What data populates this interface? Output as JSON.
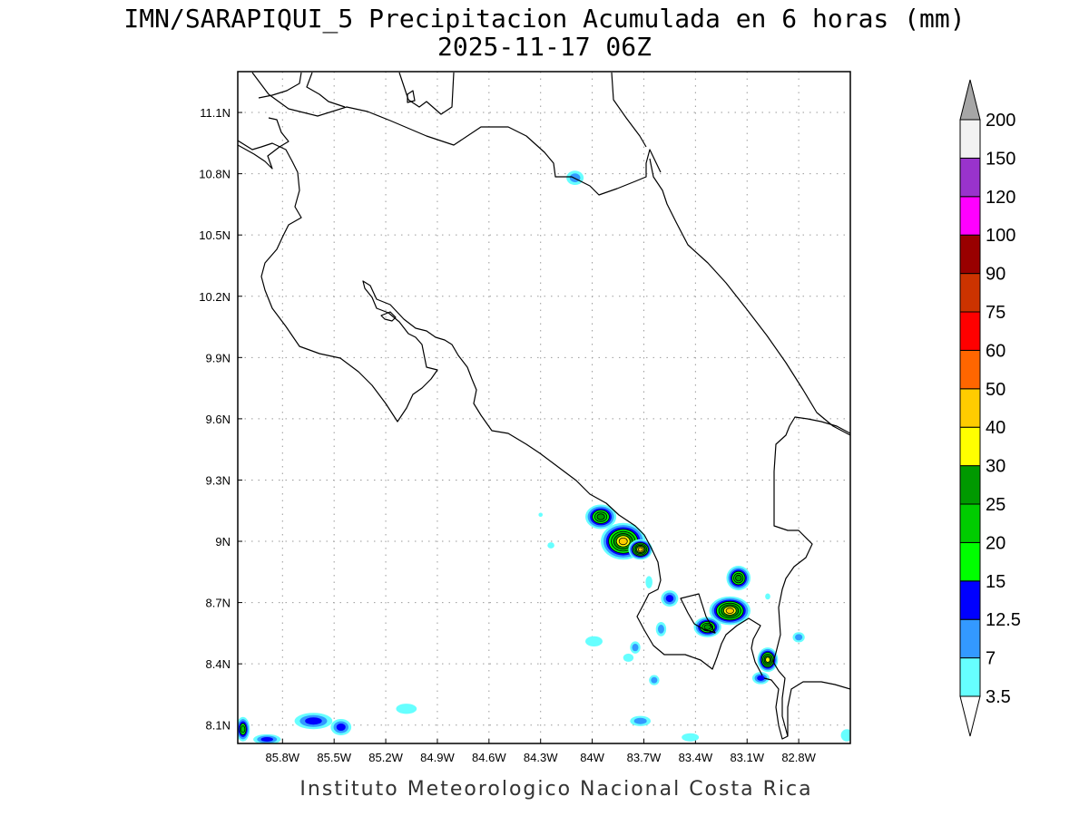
{
  "title": {
    "line1": "IMN/SARAPIQUI_5 Precipitacion Acumulada en 6 horas (mm)",
    "line2": "2025-11-17 06Z"
  },
  "credit": "Instituto Meteorologico Nacional Costa Rica",
  "map": {
    "lon_range": [
      -86.06,
      -82.5
    ],
    "lat_range": [
      8.01,
      11.3
    ],
    "lon_ticks": [
      {
        "value": -85.8,
        "label": "85.8W"
      },
      {
        "value": -85.5,
        "label": "85.5W"
      },
      {
        "value": -85.2,
        "label": "85.2W"
      },
      {
        "value": -84.9,
        "label": "84.9W"
      },
      {
        "value": -84.6,
        "label": "84.6W"
      },
      {
        "value": -84.3,
        "label": "84.3W"
      },
      {
        "value": -84.0,
        "label": "84W"
      },
      {
        "value": -83.7,
        "label": "83.7W"
      },
      {
        "value": -83.4,
        "label": "83.4W"
      },
      {
        "value": -83.1,
        "label": "83.1W"
      },
      {
        "value": -82.8,
        "label": "82.8W"
      }
    ],
    "lat_ticks": [
      {
        "value": 11.1,
        "label": "11.1N"
      },
      {
        "value": 10.8,
        "label": "10.8N"
      },
      {
        "value": 10.5,
        "label": "10.5N"
      },
      {
        "value": 10.2,
        "label": "10.2N"
      },
      {
        "value": 9.9,
        "label": "9.9N"
      },
      {
        "value": 9.6,
        "label": "9.6N"
      },
      {
        "value": 9.3,
        "label": "9.3N"
      },
      {
        "value": 9.0,
        "label": "9N"
      },
      {
        "value": 8.7,
        "label": "8.7N"
      },
      {
        "value": 8.4,
        "label": "8.4N"
      },
      {
        "value": 8.1,
        "label": "8.1N"
      }
    ],
    "grid": true
  },
  "colorbar": {
    "levels": [
      "3.5",
      "7",
      "12.5",
      "15",
      "20",
      "25",
      "30",
      "40",
      "50",
      "60",
      "75",
      "90",
      "100",
      "120",
      "150",
      "200"
    ],
    "colors": [
      "#ffffff",
      "#66ffff",
      "#3399ff",
      "#0000ff",
      "#00ff00",
      "#00cc00",
      "#009900",
      "#ffff00",
      "#ffcc00",
      "#ff6600",
      "#ff0000",
      "#cc3300",
      "#990000",
      "#ff00ff",
      "#9933cc",
      "#f2f2f2",
      "#a6a6a6"
    ]
  },
  "chart_data": {
    "type": "heatmap",
    "title": "IMN/SARAPIQUI_5 Precipitacion Acumulada en 6 horas (mm)",
    "xlabel": "",
    "ylabel": "",
    "xlim": [
      -86.06,
      -82.5
    ],
    "ylim": [
      8.01,
      11.3
    ],
    "units": "mm",
    "levels": [
      3.5,
      7,
      12.5,
      15,
      20,
      25,
      30,
      40,
      50,
      60,
      75,
      90,
      100,
      120,
      150,
      200
    ],
    "precip_cells": [
      {
        "lon": -83.95,
        "lat": 9.12,
        "rx": 0.09,
        "ry": 0.06,
        "peak": 25
      },
      {
        "lon": -83.82,
        "lat": 9.0,
        "rx": 0.13,
        "ry": 0.09,
        "peak": 40
      },
      {
        "lon": -83.72,
        "lat": 8.96,
        "rx": 0.07,
        "ry": 0.05,
        "peak": 40
      },
      {
        "lon": -83.55,
        "lat": 8.72,
        "rx": 0.05,
        "ry": 0.04,
        "peak": 12.5
      },
      {
        "lon": -83.15,
        "lat": 8.82,
        "rx": 0.07,
        "ry": 0.06,
        "peak": 25
      },
      {
        "lon": -83.2,
        "lat": 8.66,
        "rx": 0.12,
        "ry": 0.07,
        "peak": 40
      },
      {
        "lon": -83.33,
        "lat": 8.58,
        "rx": 0.08,
        "ry": 0.05,
        "peak": 25
      },
      {
        "lon": -82.98,
        "lat": 8.42,
        "rx": 0.06,
        "ry": 0.06,
        "peak": 30
      },
      {
        "lon": -83.02,
        "lat": 8.33,
        "rx": 0.05,
        "ry": 0.03,
        "peak": 12.5
      },
      {
        "lon": -84.1,
        "lat": 10.78,
        "rx": 0.05,
        "ry": 0.035,
        "peak": 7
      },
      {
        "lon": -85.62,
        "lat": 8.12,
        "rx": 0.11,
        "ry": 0.04,
        "peak": 12.5
      },
      {
        "lon": -85.46,
        "lat": 8.09,
        "rx": 0.06,
        "ry": 0.04,
        "peak": 12.5
      },
      {
        "lon": -86.03,
        "lat": 8.08,
        "rx": 0.04,
        "ry": 0.06,
        "peak": 20
      },
      {
        "lon": -85.89,
        "lat": 8.03,
        "rx": 0.08,
        "ry": 0.025,
        "peak": 12.5
      },
      {
        "lon": -85.08,
        "lat": 8.18,
        "rx": 0.06,
        "ry": 0.025,
        "peak": 3.5
      },
      {
        "lon": -83.72,
        "lat": 8.12,
        "rx": 0.06,
        "ry": 0.025,
        "peak": 7
      },
      {
        "lon": -83.64,
        "lat": 8.32,
        "rx": 0.03,
        "ry": 0.025,
        "peak": 7
      },
      {
        "lon": -83.75,
        "lat": 8.48,
        "rx": 0.03,
        "ry": 0.03,
        "peak": 7
      },
      {
        "lon": -83.99,
        "lat": 8.51,
        "rx": 0.05,
        "ry": 0.025,
        "peak": 3.5
      },
      {
        "lon": -83.6,
        "lat": 8.57,
        "rx": 0.03,
        "ry": 0.035,
        "peak": 7
      },
      {
        "lon": -82.8,
        "lat": 8.53,
        "rx": 0.035,
        "ry": 0.025,
        "peak": 7
      },
      {
        "lon": -83.43,
        "lat": 8.04,
        "rx": 0.05,
        "ry": 0.02,
        "peak": 3.5
      },
      {
        "lon": -82.52,
        "lat": 8.05,
        "rx": 0.035,
        "ry": 0.03,
        "peak": 3.5
      },
      {
        "lon": -84.24,
        "lat": 8.98,
        "rx": 0.02,
        "ry": 0.015,
        "peak": 3.5
      },
      {
        "lon": -83.79,
        "lat": 8.43,
        "rx": 0.03,
        "ry": 0.02,
        "peak": 3.5
      },
      {
        "lon": -83.67,
        "lat": 8.8,
        "rx": 0.02,
        "ry": 0.03,
        "peak": 3.5
      },
      {
        "lon": -82.98,
        "lat": 8.73,
        "rx": 0.015,
        "ry": 0.015,
        "peak": 3.5
      },
      {
        "lon": -84.3,
        "lat": 9.13,
        "rx": 0.012,
        "ry": 0.01,
        "peak": 3.5
      }
    ]
  }
}
